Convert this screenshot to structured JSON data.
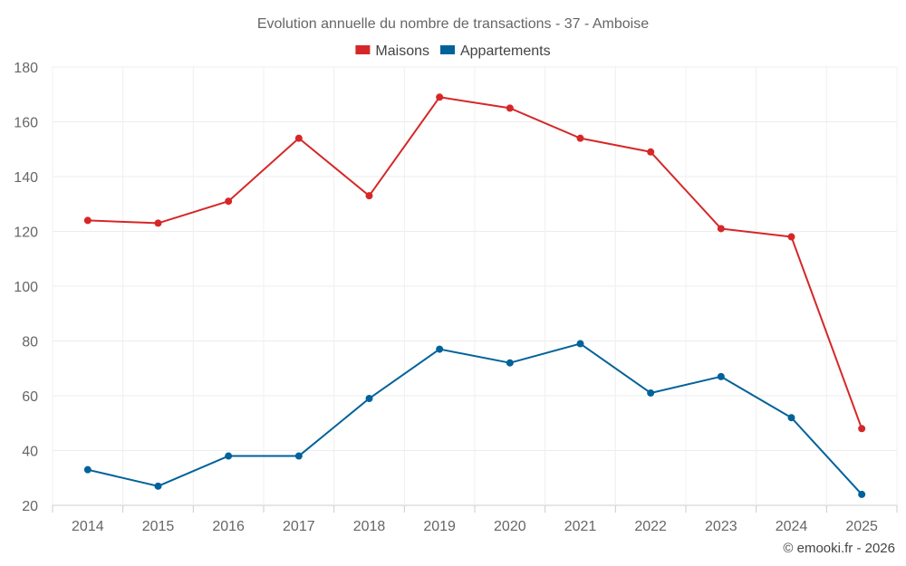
{
  "chart_data": {
    "type": "line",
    "title": "Evolution annuelle du nombre de transactions - 37 - Amboise",
    "categories": [
      "2014",
      "2015",
      "2016",
      "2017",
      "2018",
      "2019",
      "2020",
      "2021",
      "2022",
      "2023",
      "2024",
      "2025"
    ],
    "series": [
      {
        "name": "Maisons",
        "color": "#d62728",
        "values": [
          124,
          123,
          131,
          154,
          133,
          169,
          165,
          154,
          149,
          121,
          118,
          48
        ]
      },
      {
        "name": "Appartements",
        "color": "#00629a",
        "values": [
          33,
          27,
          38,
          38,
          59,
          77,
          72,
          79,
          61,
          67,
          52,
          24
        ]
      }
    ],
    "ylim": [
      20,
      180
    ],
    "yticks": [
      20,
      40,
      60,
      80,
      100,
      120,
      140,
      160,
      180
    ],
    "grid": true,
    "legend": "top-center",
    "xlabel": "",
    "ylabel": ""
  },
  "credit": "© emooki.fr - 2026"
}
